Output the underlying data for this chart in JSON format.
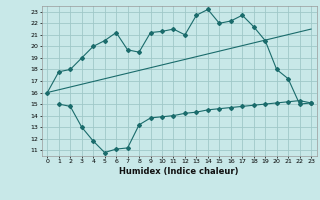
{
  "xlabel": "Humidex (Indice chaleur)",
  "bg_color": "#c8e8e8",
  "grid_color": "#a0c8c8",
  "line_color": "#1a6b6b",
  "xlim": [
    -0.5,
    23.5
  ],
  "ylim": [
    10.5,
    23.5
  ],
  "xticks": [
    0,
    1,
    2,
    3,
    4,
    5,
    6,
    7,
    8,
    9,
    10,
    11,
    12,
    13,
    14,
    15,
    16,
    17,
    18,
    19,
    20,
    21,
    22,
    23
  ],
  "yticks": [
    11,
    12,
    13,
    14,
    15,
    16,
    17,
    18,
    19,
    20,
    21,
    22,
    23
  ],
  "line1_x": [
    0,
    1,
    2,
    3,
    4,
    5,
    6,
    7,
    8,
    9,
    10,
    11,
    12,
    13,
    14,
    15,
    16,
    17,
    18,
    19,
    20,
    21,
    22,
    23
  ],
  "line1_y": [
    16,
    17.8,
    18,
    19,
    20,
    20.5,
    21.2,
    19.7,
    19.5,
    21.2,
    21.3,
    21.5,
    21.0,
    22.7,
    23.2,
    22.0,
    22.2,
    22.7,
    21.7,
    20.5,
    18.0,
    17.2,
    15.0,
    15.1
  ],
  "line2_x": [
    0,
    23
  ],
  "line2_y": [
    16,
    21.5
  ],
  "line3_x": [
    1,
    2,
    3,
    4,
    5,
    6,
    7,
    8,
    9,
    10,
    11,
    12,
    13,
    14,
    15,
    16,
    17,
    18,
    19,
    20,
    21,
    22,
    23
  ],
  "line3_y": [
    15,
    14.8,
    13.0,
    11.8,
    10.8,
    11.1,
    11.2,
    13.2,
    13.8,
    13.9,
    14.0,
    14.2,
    14.3,
    14.5,
    14.6,
    14.7,
    14.8,
    14.9,
    15.0,
    15.1,
    15.2,
    15.3,
    15.1
  ]
}
